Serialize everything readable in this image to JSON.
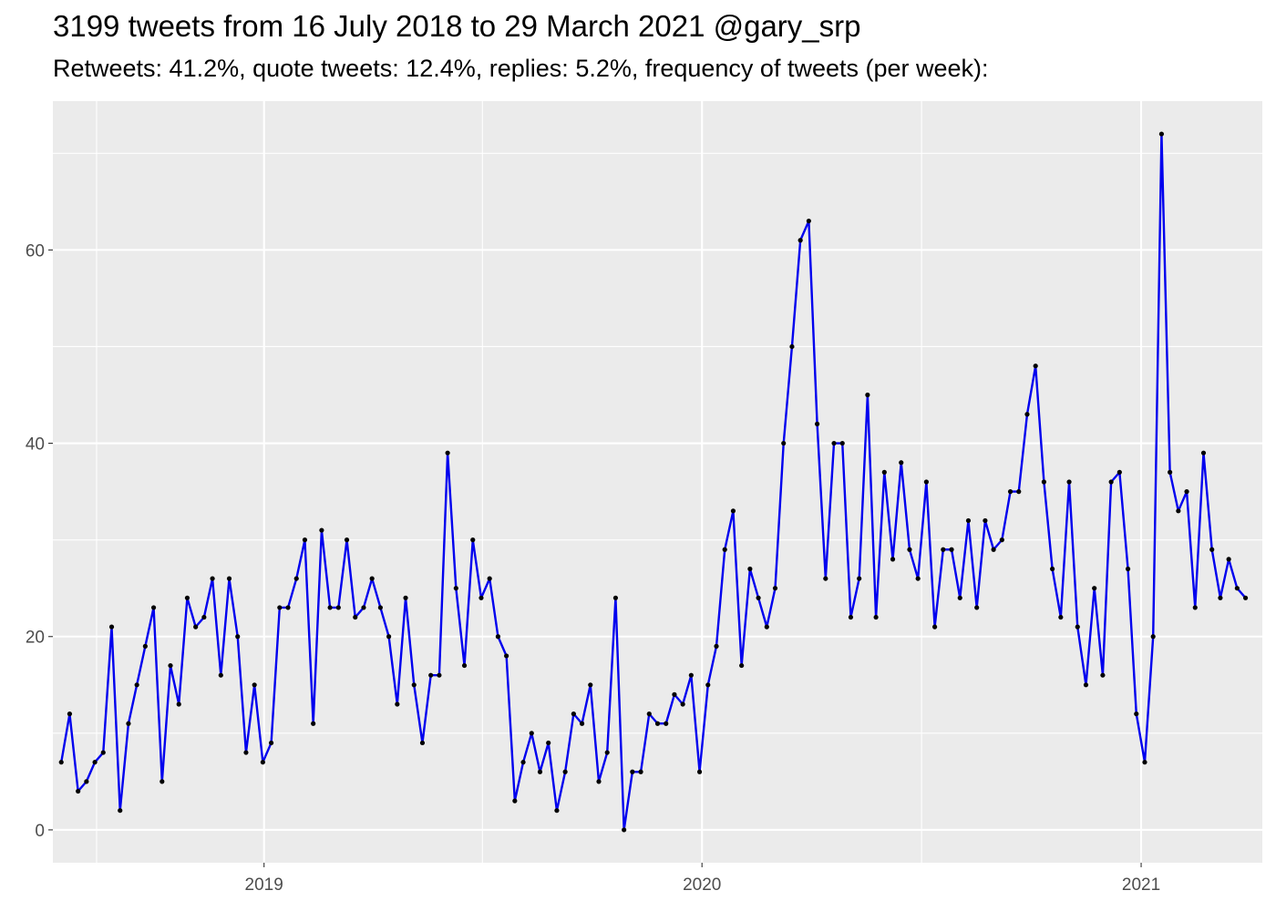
{
  "title": "3199 tweets from 16 July 2018 to 29 March 2021 @gary_srp",
  "subtitle": "Retweets: 41.2%, quote tweets: 12.4%, replies: 5.2%, frequency of tweets (per week):",
  "colors": {
    "panel_background": "#ebebeb",
    "grid": "#ffffff",
    "line": "#0000ee",
    "point": "#000000",
    "tick_text": "#4d4d4d"
  },
  "chart_data": {
    "type": "line",
    "xlabel": "",
    "ylabel": "",
    "x_start": "2018-07-16",
    "x_interval_days": 7,
    "xlim": [
      "2018-07-09",
      "2021-04-12"
    ],
    "ylim": [
      -3.4,
      75.4
    ],
    "grid": true,
    "legend": "none",
    "x_ticks": [
      {
        "label": "2019",
        "date": "2019-01-01"
      },
      {
        "label": "2020",
        "date": "2020-01-01"
      },
      {
        "label": "2021",
        "date": "2021-01-01"
      }
    ],
    "y_ticks": [
      {
        "label": "0",
        "value": 0
      },
      {
        "label": "20",
        "value": 20
      },
      {
        "label": "40",
        "value": 40
      },
      {
        "label": "60",
        "value": 60
      }
    ],
    "series": [
      {
        "values": [
          7,
          12,
          4,
          5,
          7,
          8,
          21,
          2,
          11,
          15,
          19,
          23,
          5,
          17,
          13,
          24,
          21,
          22,
          26,
          16,
          26,
          20,
          8,
          15,
          7,
          9,
          23,
          23,
          26,
          30,
          11,
          31,
          23,
          23,
          30,
          22,
          23,
          26,
          23,
          20,
          13,
          24,
          15,
          9,
          16,
          16,
          39,
          25,
          17,
          30,
          24,
          26,
          20,
          18,
          3,
          7,
          10,
          6,
          9,
          2,
          6,
          12,
          11,
          15,
          5,
          8,
          24,
          0,
          6,
          6,
          12,
          11,
          11,
          14,
          13,
          16,
          6,
          15,
          19,
          29,
          33,
          17,
          27,
          24,
          21,
          25,
          40,
          50,
          61,
          63,
          42,
          26,
          40,
          40,
          22,
          26,
          45,
          22,
          37,
          28,
          38,
          29,
          26,
          36,
          21,
          29,
          29,
          24,
          32,
          23,
          32,
          29,
          30,
          35,
          35,
          43,
          48,
          36,
          27,
          22,
          36,
          21,
          15,
          25,
          16,
          36,
          37,
          27,
          12,
          7,
          20,
          72,
          37,
          33,
          35,
          23,
          39,
          29,
          24,
          28,
          25,
          24
        ]
      }
    ]
  }
}
